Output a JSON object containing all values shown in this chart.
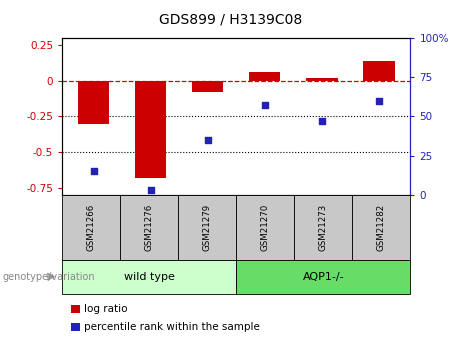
{
  "title": "GDS899 / H3139C08",
  "samples": [
    "GSM21266",
    "GSM21276",
    "GSM21279",
    "GSM21270",
    "GSM21273",
    "GSM21282"
  ],
  "log_ratio": [
    -0.3,
    -0.68,
    -0.08,
    0.06,
    0.02,
    0.14
  ],
  "percentile_rank": [
    15,
    3,
    35,
    57,
    47,
    60
  ],
  "bar_color": "#cc0000",
  "dot_color": "#2222bb",
  "ylim_left": [
    -0.8,
    0.3
  ],
  "ylim_right": [
    0,
    100
  ],
  "yticks_left": [
    -0.75,
    -0.5,
    -0.25,
    0,
    0.25
  ],
  "yticks_right": [
    0,
    25,
    50,
    75,
    100
  ],
  "ytick_labels_left": [
    "-0.75",
    "-0.5",
    "-0.25",
    "0",
    "0.25"
  ],
  "ytick_labels_right": [
    "0",
    "25",
    "50",
    "75",
    "100%"
  ],
  "hline_y": 0,
  "dotted_lines": [
    -0.25,
    -0.5
  ],
  "group1_label": "wild type",
  "group2_label": "AQP1-/-",
  "group1_color": "#ccffcc",
  "group2_color": "#66dd66",
  "genotype_label": "genotype/variation",
  "legend_bar_label": "log ratio",
  "legend_dot_label": "percentile rank within the sample",
  "sample_box_color": "#c8c8c8",
  "title_fontsize": 10,
  "tick_fontsize": 7.5,
  "label_fontsize": 8
}
